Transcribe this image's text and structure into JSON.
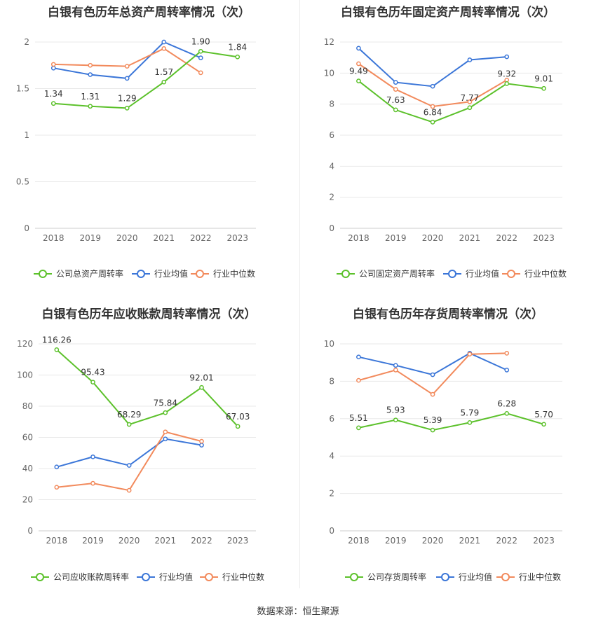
{
  "source_label": "数据来源：恒生聚源",
  "legend_common": [
    "行业均值",
    "行业中位数"
  ],
  "colors": {
    "company": "#5cc12b",
    "avg": "#3b76d8",
    "median": "#f28a5c"
  },
  "chart_data": [
    {
      "type": "line",
      "title": "白银有色历年总资产周转率情况（次）",
      "categories": [
        "2018",
        "2019",
        "2020",
        "2021",
        "2022",
        "2023"
      ],
      "ylim": [
        0,
        2
      ],
      "yticks": [
        "0",
        "0.5",
        "1",
        "1.5",
        "2"
      ],
      "legend": [
        "公司总资产周转率",
        "行业均值",
        "行业中位数"
      ],
      "series": [
        {
          "name": "公司总资产周转率",
          "values": [
            1.34,
            1.31,
            1.29,
            1.57,
            1.9,
            1.84
          ],
          "labels": [
            "1.34",
            "1.31",
            "1.29",
            "1.57",
            "1.90",
            "1.84"
          ]
        },
        {
          "name": "行业均值",
          "values": [
            1.72,
            1.65,
            1.61,
            2.0,
            1.83,
            null
          ]
        },
        {
          "name": "行业中位数",
          "values": [
            1.76,
            1.75,
            1.74,
            1.93,
            1.67,
            null
          ]
        }
      ]
    },
    {
      "type": "line",
      "title": "白银有色历年固定资产周转率情况（次）",
      "categories": [
        "2018",
        "2019",
        "2020",
        "2021",
        "2022",
        "2023"
      ],
      "ylim": [
        0,
        12
      ],
      "yticks": [
        "0",
        "2",
        "4",
        "6",
        "8",
        "10",
        "12"
      ],
      "legend": [
        "公司固定资产周转率",
        "行业均值",
        "行业中位数"
      ],
      "series": [
        {
          "name": "公司固定资产周转率",
          "values": [
            9.49,
            7.63,
            6.84,
            7.77,
            9.32,
            9.01
          ],
          "labels": [
            "9.49",
            "7.63",
            "6.84",
            "7.77",
            "9.32",
            "9.01"
          ]
        },
        {
          "name": "行业均值",
          "values": [
            11.6,
            9.4,
            9.15,
            10.85,
            11.05,
            null
          ]
        },
        {
          "name": "行业中位数",
          "values": [
            10.6,
            8.95,
            7.85,
            8.15,
            9.55,
            null
          ]
        }
      ]
    },
    {
      "type": "line",
      "title": "白银有色历年应收账款周转率情况（次）",
      "categories": [
        "2018",
        "2019",
        "2020",
        "2021",
        "2022",
        "2023"
      ],
      "ylim": [
        0,
        120
      ],
      "yticks": [
        "0",
        "20",
        "40",
        "60",
        "80",
        "100",
        "120"
      ],
      "legend": [
        "公司应收账款周转率",
        "行业均值",
        "行业中位数"
      ],
      "series": [
        {
          "name": "公司应收账款周转率",
          "values": [
            116.26,
            95.43,
            68.29,
            75.84,
            92.01,
            67.03
          ],
          "labels": [
            "116.26",
            "95.43",
            "68.29",
            "75.84",
            "92.01",
            "67.03"
          ]
        },
        {
          "name": "行业均值",
          "values": [
            41,
            47.5,
            42,
            59,
            55,
            null
          ]
        },
        {
          "name": "行业中位数",
          "values": [
            28,
            30.5,
            26,
            63.5,
            57.5,
            null
          ]
        }
      ]
    },
    {
      "type": "line",
      "title": "白银有色历年存货周转率情况（次）",
      "categories": [
        "2018",
        "2019",
        "2020",
        "2021",
        "2022",
        "2023"
      ],
      "ylim": [
        0,
        10
      ],
      "yticks": [
        "0",
        "2",
        "4",
        "6",
        "8",
        "10"
      ],
      "legend": [
        "公司存货周转率",
        "行业均值",
        "行业中位数"
      ],
      "series": [
        {
          "name": "公司存货周转率",
          "values": [
            5.51,
            5.93,
            5.39,
            5.79,
            6.28,
            5.7
          ],
          "labels": [
            "5.51",
            "5.93",
            "5.39",
            "5.79",
            "6.28",
            "5.70"
          ]
        },
        {
          "name": "行业均值",
          "values": [
            9.3,
            8.85,
            8.35,
            9.5,
            8.6,
            null
          ]
        },
        {
          "name": "行业中位数",
          "values": [
            8.05,
            8.6,
            7.3,
            9.45,
            9.5,
            null
          ]
        }
      ]
    }
  ]
}
